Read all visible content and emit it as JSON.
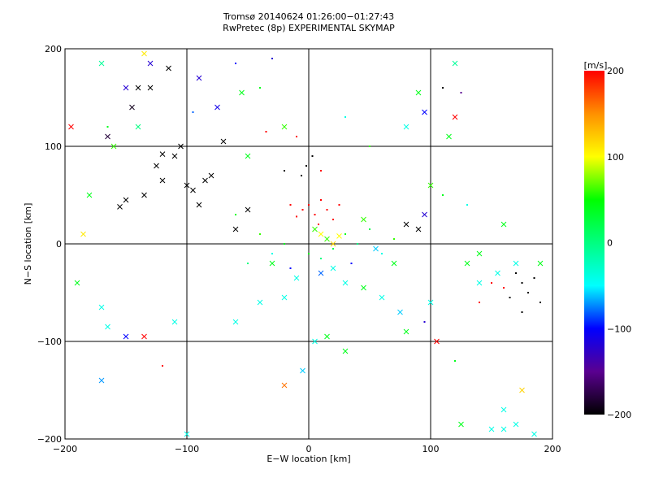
{
  "chart_data": {
    "type": "scatter",
    "title": "Tromsø 20140624 01:26:00−01:27:43",
    "subtitle": "RwPretec (8p) EXPERIMENTAL SKYMAP",
    "xlabel": "E−W location [km]",
    "ylabel": "N−S location [km]",
    "xlim": [
      -200,
      200
    ],
    "ylim": [
      -200,
      200
    ],
    "xticks": [
      -200,
      -100,
      0,
      100,
      200
    ],
    "yticks": [
      -200,
      -100,
      0,
      100,
      200
    ],
    "xtick_labels": [
      "−200",
      "−100",
      "0",
      "100",
      "200"
    ],
    "ytick_labels": [
      "−200",
      "−100",
      "0",
      "100",
      "200"
    ],
    "grid": true,
    "colorbar": {
      "label": "[m/s]",
      "range": [
        -200,
        200
      ],
      "ticks": [
        200,
        100,
        0,
        -100,
        -200
      ],
      "tick_labels": [
        "200",
        "100",
        "0",
        "−100",
        "−200"
      ],
      "colormap": [
        {
          "v": -200,
          "color": "#000000"
        },
        {
          "v": -150,
          "color": "#5a0090"
        },
        {
          "v": -100,
          "color": "#0000ff"
        },
        {
          "v": -50,
          "color": "#00ffff"
        },
        {
          "v": 0,
          "color": "#00ff80"
        },
        {
          "v": 50,
          "color": "#00ff00"
        },
        {
          "v": 100,
          "color": "#ffff00"
        },
        {
          "v": 150,
          "color": "#ff9000"
        },
        {
          "v": 200,
          "color": "#ff0000"
        }
      ]
    },
    "point_fields": [
      "x_km",
      "y_km",
      "velocity_ms",
      "marker"
    ],
    "points": [
      [
        -100,
        60,
        -200,
        "x"
      ],
      [
        -95,
        55,
        -200,
        "x"
      ],
      [
        -110,
        90,
        -200,
        "x"
      ],
      [
        -120,
        92,
        -200,
        "x"
      ],
      [
        -140,
        160,
        -200,
        "x"
      ],
      [
        -130,
        160,
        -200,
        "x"
      ],
      [
        -145,
        140,
        -190,
        "x"
      ],
      [
        -150,
        45,
        -200,
        "x"
      ],
      [
        -80,
        70,
        -200,
        "x"
      ],
      [
        -90,
        40,
        -200,
        "x"
      ],
      [
        -85,
        65,
        -200,
        "x"
      ],
      [
        -120,
        65,
        -200,
        "x"
      ],
      [
        -135,
        50,
        -200,
        "x"
      ],
      [
        -105,
        100,
        -200,
        "x"
      ],
      [
        -155,
        38,
        -200,
        "x"
      ],
      [
        -115,
        180,
        -200,
        "x"
      ],
      [
        -125,
        80,
        -200,
        "x"
      ],
      [
        -60,
        15,
        -200,
        "x"
      ],
      [
        -70,
        105,
        -200,
        "x"
      ],
      [
        -165,
        110,
        -180,
        "x"
      ],
      [
        -130,
        185,
        -120,
        "x"
      ],
      [
        -90,
        170,
        -120,
        "x"
      ],
      [
        -75,
        140,
        -110,
        "x"
      ],
      [
        -170,
        185,
        -10,
        "x"
      ],
      [
        -135,
        195,
        110,
        "x"
      ],
      [
        -160,
        100,
        60,
        "x"
      ],
      [
        -140,
        120,
        0,
        "x"
      ],
      [
        -185,
        10,
        110,
        "x"
      ],
      [
        -170,
        -65,
        -40,
        "x"
      ],
      [
        -165,
        -85,
        -40,
        "x"
      ],
      [
        -190,
        -40,
        40,
        "x"
      ],
      [
        -170,
        -140,
        -70,
        "x"
      ],
      [
        -100,
        -195,
        -40,
        "x"
      ],
      [
        -120,
        -125,
        200,
        "."
      ],
      [
        -135,
        -95,
        200,
        "x"
      ],
      [
        -150,
        -95,
        -100,
        "x"
      ],
      [
        -110,
        -80,
        -40,
        "x"
      ],
      [
        -60,
        -80,
        -40,
        "x"
      ],
      [
        -40,
        -60,
        -40,
        "x"
      ],
      [
        -20,
        -55,
        -40,
        "x"
      ],
      [
        -30,
        -20,
        40,
        "x"
      ],
      [
        -10,
        -35,
        -40,
        "x"
      ],
      [
        10,
        -30,
        -80,
        "x"
      ],
      [
        20,
        -25,
        -40,
        "x"
      ],
      [
        30,
        -40,
        -40,
        "x"
      ],
      [
        45,
        -45,
        40,
        "x"
      ],
      [
        60,
        -55,
        -40,
        "x"
      ],
      [
        5,
        -100,
        -40,
        "x"
      ],
      [
        15,
        -95,
        40,
        "x"
      ],
      [
        -20,
        -145,
        160,
        "x"
      ],
      [
        -5,
        -130,
        -60,
        "x"
      ],
      [
        30,
        -110,
        40,
        "x"
      ],
      [
        75,
        -70,
        -60,
        "x"
      ],
      [
        80,
        -90,
        40,
        "x"
      ],
      [
        100,
        -60,
        -40,
        "x"
      ],
      [
        10,
        10,
        100,
        "x"
      ],
      [
        15,
        5,
        60,
        "x"
      ],
      [
        20,
        0,
        120,
        "x"
      ],
      [
        5,
        15,
        60,
        "x"
      ],
      [
        25,
        8,
        100,
        "x"
      ],
      [
        -5,
        35,
        200,
        "."
      ],
      [
        0,
        40,
        200,
        "."
      ],
      [
        5,
        30,
        200,
        "."
      ],
      [
        10,
        45,
        200,
        "."
      ],
      [
        15,
        35,
        200,
        "."
      ],
      [
        20,
        25,
        200,
        "."
      ],
      [
        -10,
        28,
        200,
        "."
      ],
      [
        -15,
        40,
        200,
        "."
      ],
      [
        25,
        40,
        200,
        "."
      ],
      [
        8,
        20,
        200,
        "."
      ],
      [
        -2,
        80,
        -200,
        "."
      ],
      [
        3,
        90,
        -200,
        "."
      ],
      [
        -6,
        70,
        -200,
        "."
      ],
      [
        10,
        75,
        200,
        "."
      ],
      [
        -20,
        75,
        -200,
        "."
      ],
      [
        0,
        -10,
        40,
        "."
      ],
      [
        10,
        -15,
        0,
        "."
      ],
      [
        20,
        -5,
        20,
        "."
      ],
      [
        30,
        10,
        40,
        "."
      ],
      [
        40,
        0,
        0,
        "."
      ],
      [
        50,
        15,
        20,
        "."
      ],
      [
        -20,
        0,
        40,
        "."
      ],
      [
        -30,
        -10,
        -40,
        "."
      ],
      [
        -40,
        10,
        60,
        "."
      ],
      [
        -50,
        -20,
        0,
        "."
      ],
      [
        60,
        -10,
        -40,
        "."
      ],
      [
        70,
        5,
        60,
        "."
      ],
      [
        -60,
        30,
        40,
        "."
      ],
      [
        35,
        -20,
        -100,
        "."
      ],
      [
        -15,
        -25,
        -100,
        "."
      ],
      [
        45,
        25,
        60,
        "x"
      ],
      [
        55,
        -5,
        -60,
        "x"
      ],
      [
        80,
        20,
        -200,
        "x"
      ],
      [
        90,
        15,
        -200,
        "x"
      ],
      [
        -50,
        35,
        -200,
        "x"
      ],
      [
        170,
        -30,
        -200,
        "."
      ],
      [
        175,
        -40,
        -200,
        "."
      ],
      [
        180,
        -50,
        -200,
        "."
      ],
      [
        185,
        -35,
        -200,
        "."
      ],
      [
        165,
        -55,
        -200,
        "."
      ],
      [
        160,
        -45,
        200,
        "."
      ],
      [
        150,
        -40,
        200,
        "."
      ],
      [
        190,
        -60,
        -200,
        "."
      ],
      [
        175,
        -70,
        -200,
        "."
      ],
      [
        140,
        -60,
        200,
        "."
      ],
      [
        155,
        -30,
        -40,
        "x"
      ],
      [
        170,
        -20,
        -40,
        "x"
      ],
      [
        140,
        -40,
        -40,
        "x"
      ],
      [
        190,
        -20,
        40,
        "x"
      ],
      [
        130,
        -20,
        40,
        "x"
      ],
      [
        150,
        -190,
        -40,
        "x"
      ],
      [
        160,
        -190,
        -40,
        "x"
      ],
      [
        170,
        -185,
        -40,
        "x"
      ],
      [
        185,
        -195,
        -40,
        "x"
      ],
      [
        125,
        -185,
        40,
        "x"
      ],
      [
        175,
        -150,
        120,
        "x"
      ],
      [
        160,
        -170,
        -40,
        "x"
      ],
      [
        105,
        -100,
        200,
        "x"
      ],
      [
        120,
        -120,
        40,
        "."
      ],
      [
        95,
        -80,
        -120,
        "."
      ],
      [
        90,
        155,
        40,
        "x"
      ],
      [
        95,
        135,
        -100,
        "x"
      ],
      [
        120,
        185,
        -10,
        "x"
      ],
      [
        110,
        160,
        -200,
        "."
      ],
      [
        125,
        155,
        -150,
        "."
      ],
      [
        120,
        130,
        200,
        "x"
      ],
      [
        115,
        110,
        40,
        "x"
      ],
      [
        80,
        120,
        -40,
        "x"
      ],
      [
        70,
        -20,
        40,
        "x"
      ],
      [
        140,
        -10,
        40,
        "x"
      ],
      [
        160,
        20,
        40,
        "x"
      ],
      [
        130,
        40,
        -40,
        "."
      ],
      [
        100,
        60,
        60,
        "x"
      ],
      [
        95,
        30,
        -120,
        "x"
      ],
      [
        110,
        50,
        40,
        "."
      ],
      [
        -55,
        155,
        40,
        "x"
      ],
      [
        -40,
        160,
        40,
        "."
      ],
      [
        -35,
        115,
        200,
        "."
      ],
      [
        -20,
        120,
        60,
        "x"
      ],
      [
        -50,
        90,
        40,
        "x"
      ],
      [
        -10,
        110,
        200,
        "."
      ],
      [
        30,
        130,
        -40,
        "."
      ],
      [
        50,
        100,
        60,
        "."
      ],
      [
        -60,
        185,
        -100,
        "."
      ],
      [
        -30,
        190,
        -120,
        "."
      ],
      [
        -165,
        120,
        40,
        "."
      ],
      [
        -150,
        160,
        -120,
        "x"
      ],
      [
        -95,
        135,
        -80,
        "."
      ],
      [
        -180,
        50,
        40,
        "x"
      ],
      [
        -195,
        120,
        200,
        "x"
      ]
    ]
  }
}
